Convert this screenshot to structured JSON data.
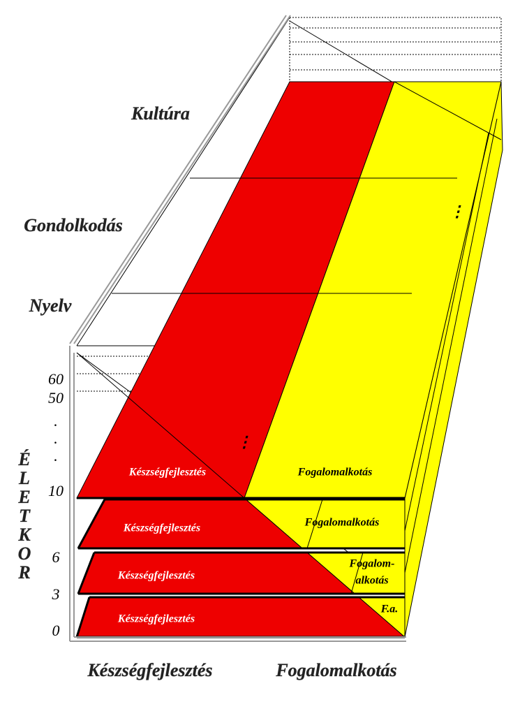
{
  "axis_labels": {
    "levels": [
      "Kultúra",
      "Gondolkodás",
      "Nyelv"
    ],
    "age_title_letters": [
      "É",
      "L",
      "E",
      "T",
      "K",
      "O",
      "R"
    ],
    "ages": [
      "60",
      "50",
      ".",
      ".",
      ".",
      "10",
      "6",
      "3",
      "0"
    ],
    "bottom": [
      "Készségfejlesztés",
      "Fogalomalkotás"
    ]
  },
  "layers": [
    {
      "left": "Készségfejlesztés",
      "right": [
        "Fogalomalkotás"
      ]
    },
    {
      "left": "Készségfejlesztés",
      "right": [
        "Fogalomalkotás"
      ]
    },
    {
      "left": "Készségfejlesztés",
      "right": [
        "Fogalom-",
        "alkotás"
      ]
    },
    {
      "left": "Készségfejlesztés",
      "right": [
        "F.a."
      ]
    }
  ],
  "ellipses": [
    "⋮",
    "⋮"
  ]
}
